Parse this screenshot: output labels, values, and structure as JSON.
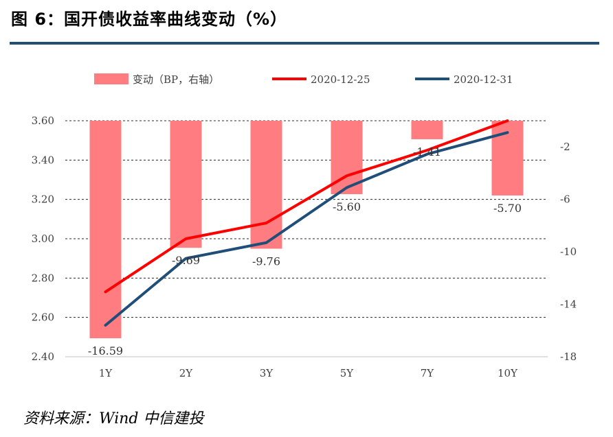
{
  "header": {
    "title": "图 6：国开债收益率曲线变动（%）"
  },
  "footer": {
    "source": "资料来源：Wind 中信建投"
  },
  "chart_data": {
    "type": "bar+line",
    "categories": [
      "1Y",
      "2Y",
      "3Y",
      "5Y",
      "7Y",
      "10Y"
    ],
    "left_axis": {
      "range": [
        2.4,
        3.6
      ],
      "ticks": [
        "2.40",
        "2.60",
        "2.80",
        "3.00",
        "3.20",
        "3.40",
        "3.60"
      ]
    },
    "right_axis": {
      "range": [
        -18,
        0
      ],
      "ticks": [
        "-18",
        "-14",
        "-10",
        "-6",
        "-2"
      ]
    },
    "bars": {
      "name": "变动（BP，右轴）",
      "color": "#ff7c80",
      "values": [
        -16.59,
        -9.69,
        -9.76,
        -5.6,
        -1.41,
        -5.7
      ],
      "labels": [
        "-16.59",
        "-9.69",
        "-9.76",
        "-5.60",
        "-1.41",
        "-5.70"
      ]
    },
    "series": [
      {
        "name": "2020-12-25",
        "color": "#ff0000",
        "values": [
          2.73,
          3.0,
          3.08,
          3.32,
          3.45,
          3.6
        ]
      },
      {
        "name": "2020-12-31",
        "color": "#1f4e79",
        "values": [
          2.56,
          2.9,
          2.98,
          3.26,
          3.43,
          3.54
        ]
      }
    ],
    "legend": [
      "变动（BP，右轴）",
      "2020-12-25",
      "2020-12-31"
    ],
    "legend_position": "top",
    "grid": true
  }
}
